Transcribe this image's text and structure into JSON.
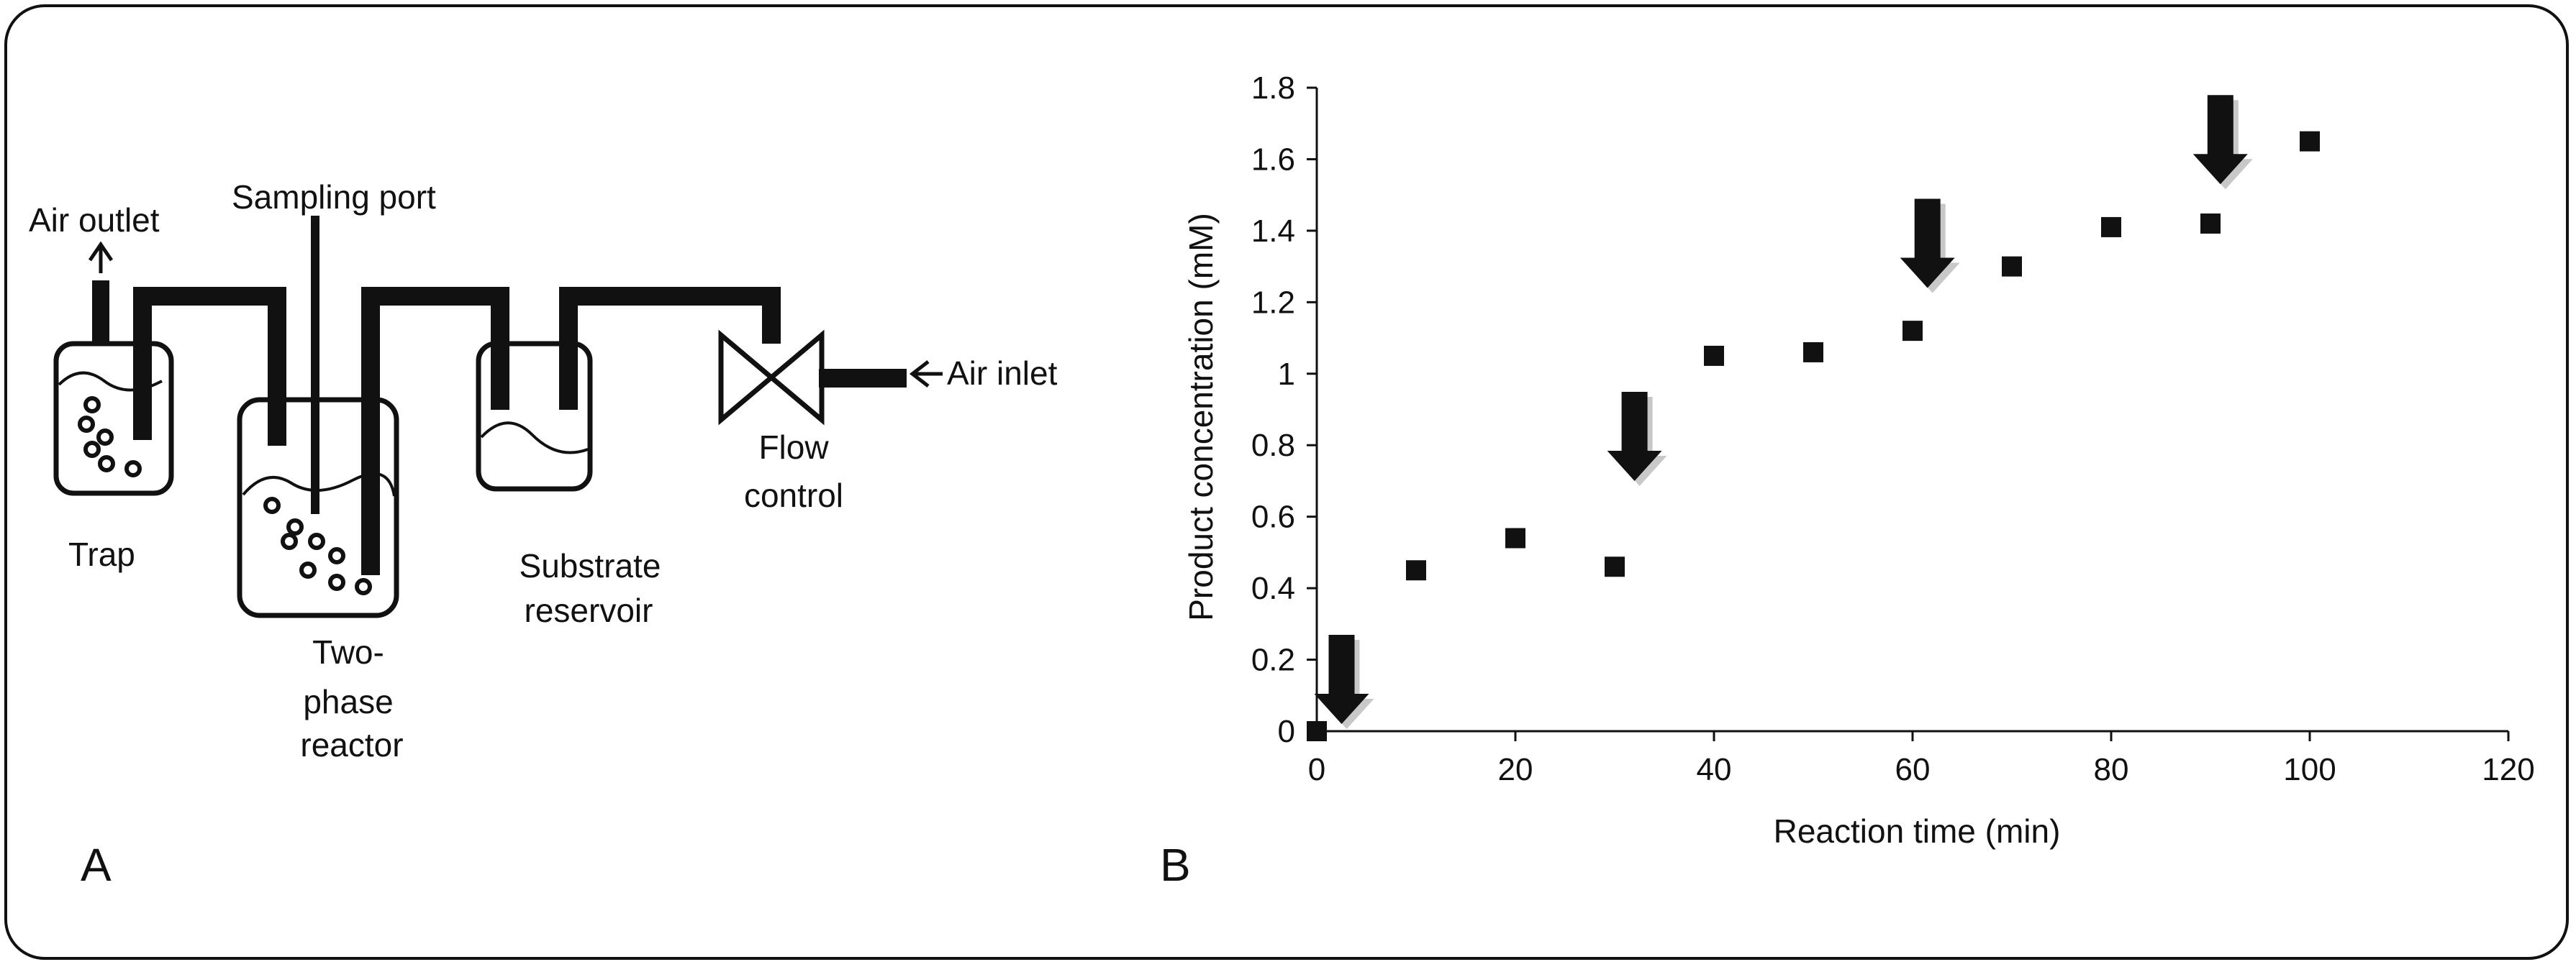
{
  "panel_a": {
    "panel_label": "A",
    "labels": {
      "air_outlet": "Air outlet",
      "sampling_port": "Sampling port",
      "air_inlet": "Air inlet",
      "trap": "Trap",
      "reactor_line1": "Two-",
      "reactor_line2": "phase",
      "reactor_line3": "reactor",
      "substrate_line1": "Substrate",
      "substrate_line2": "reservoir",
      "flow_line1": "Flow",
      "flow_line2": "control"
    }
  },
  "panel_b": {
    "panel_label": "B"
  },
  "chart_data": {
    "type": "scatter",
    "title": "",
    "xlabel": "Reaction time (min)",
    "ylabel": "Product concentration (mM)",
    "xlim": [
      0,
      120
    ],
    "ylim": [
      0,
      1.8
    ],
    "x_ticks": [
      "0",
      "20",
      "40",
      "60",
      "80",
      "100",
      "120"
    ],
    "y_ticks": [
      "0",
      "0.2",
      "0.4",
      "0.6",
      "0.8",
      "1",
      "1.2",
      "1.4",
      "1.6",
      "1.8"
    ],
    "grid": false,
    "legend": "none",
    "marker_color": "#111111",
    "series": [
      {
        "x": [
          0,
          10,
          20,
          30,
          40,
          50,
          60,
          70,
          80,
          90,
          100
        ],
        "y": [
          0.0,
          0.45,
          0.54,
          0.46,
          1.05,
          1.06,
          1.12,
          1.3,
          1.41,
          1.42,
          1.65
        ]
      }
    ],
    "annotations": [
      {
        "type": "down-arrow",
        "x": 2.5,
        "y": 0.02
      },
      {
        "type": "down-arrow",
        "x": 32,
        "y": 0.7
      },
      {
        "type": "down-arrow",
        "x": 61.5,
        "y": 1.24
      },
      {
        "type": "down-arrow",
        "x": 91,
        "y": 1.53
      }
    ]
  }
}
